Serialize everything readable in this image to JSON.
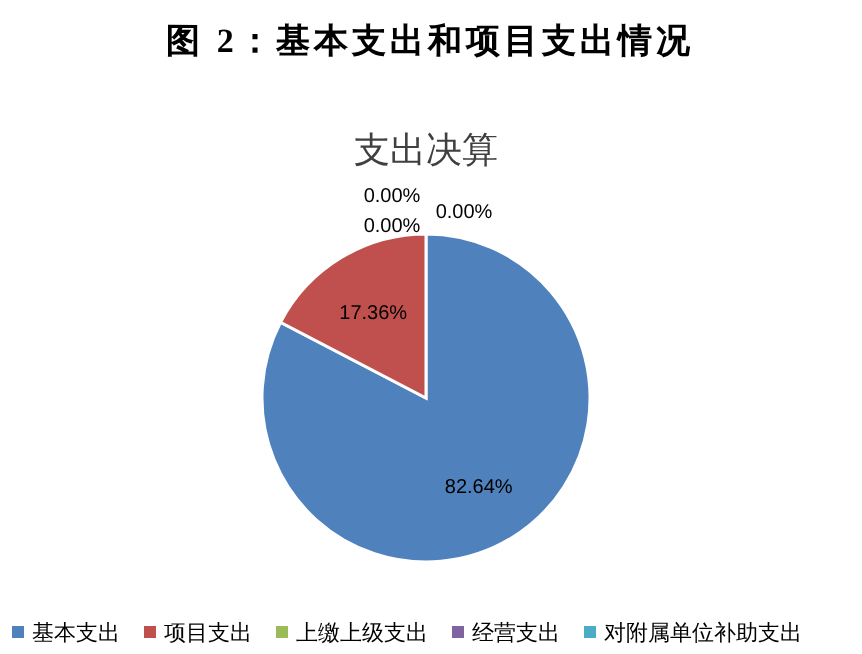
{
  "chart_data": {
    "type": "pie",
    "title": "图 2：基本支出和项目支出情况",
    "subtitle": "支出决算",
    "categories": [
      "基本支出",
      "项目支出",
      "上缴上级支出",
      "经营支出",
      "对附属单位补助支出"
    ],
    "values": [
      82.64,
      17.36,
      0,
      0,
      0
    ],
    "value_labels": [
      "82.64%",
      "17.36%",
      "0.00%",
      "0.00%",
      "0.00%"
    ],
    "colors": [
      "#4f81bd",
      "#c0504d",
      "#9bbb59",
      "#8064a2",
      "#4bacc6"
    ],
    "legend": "bottom"
  }
}
